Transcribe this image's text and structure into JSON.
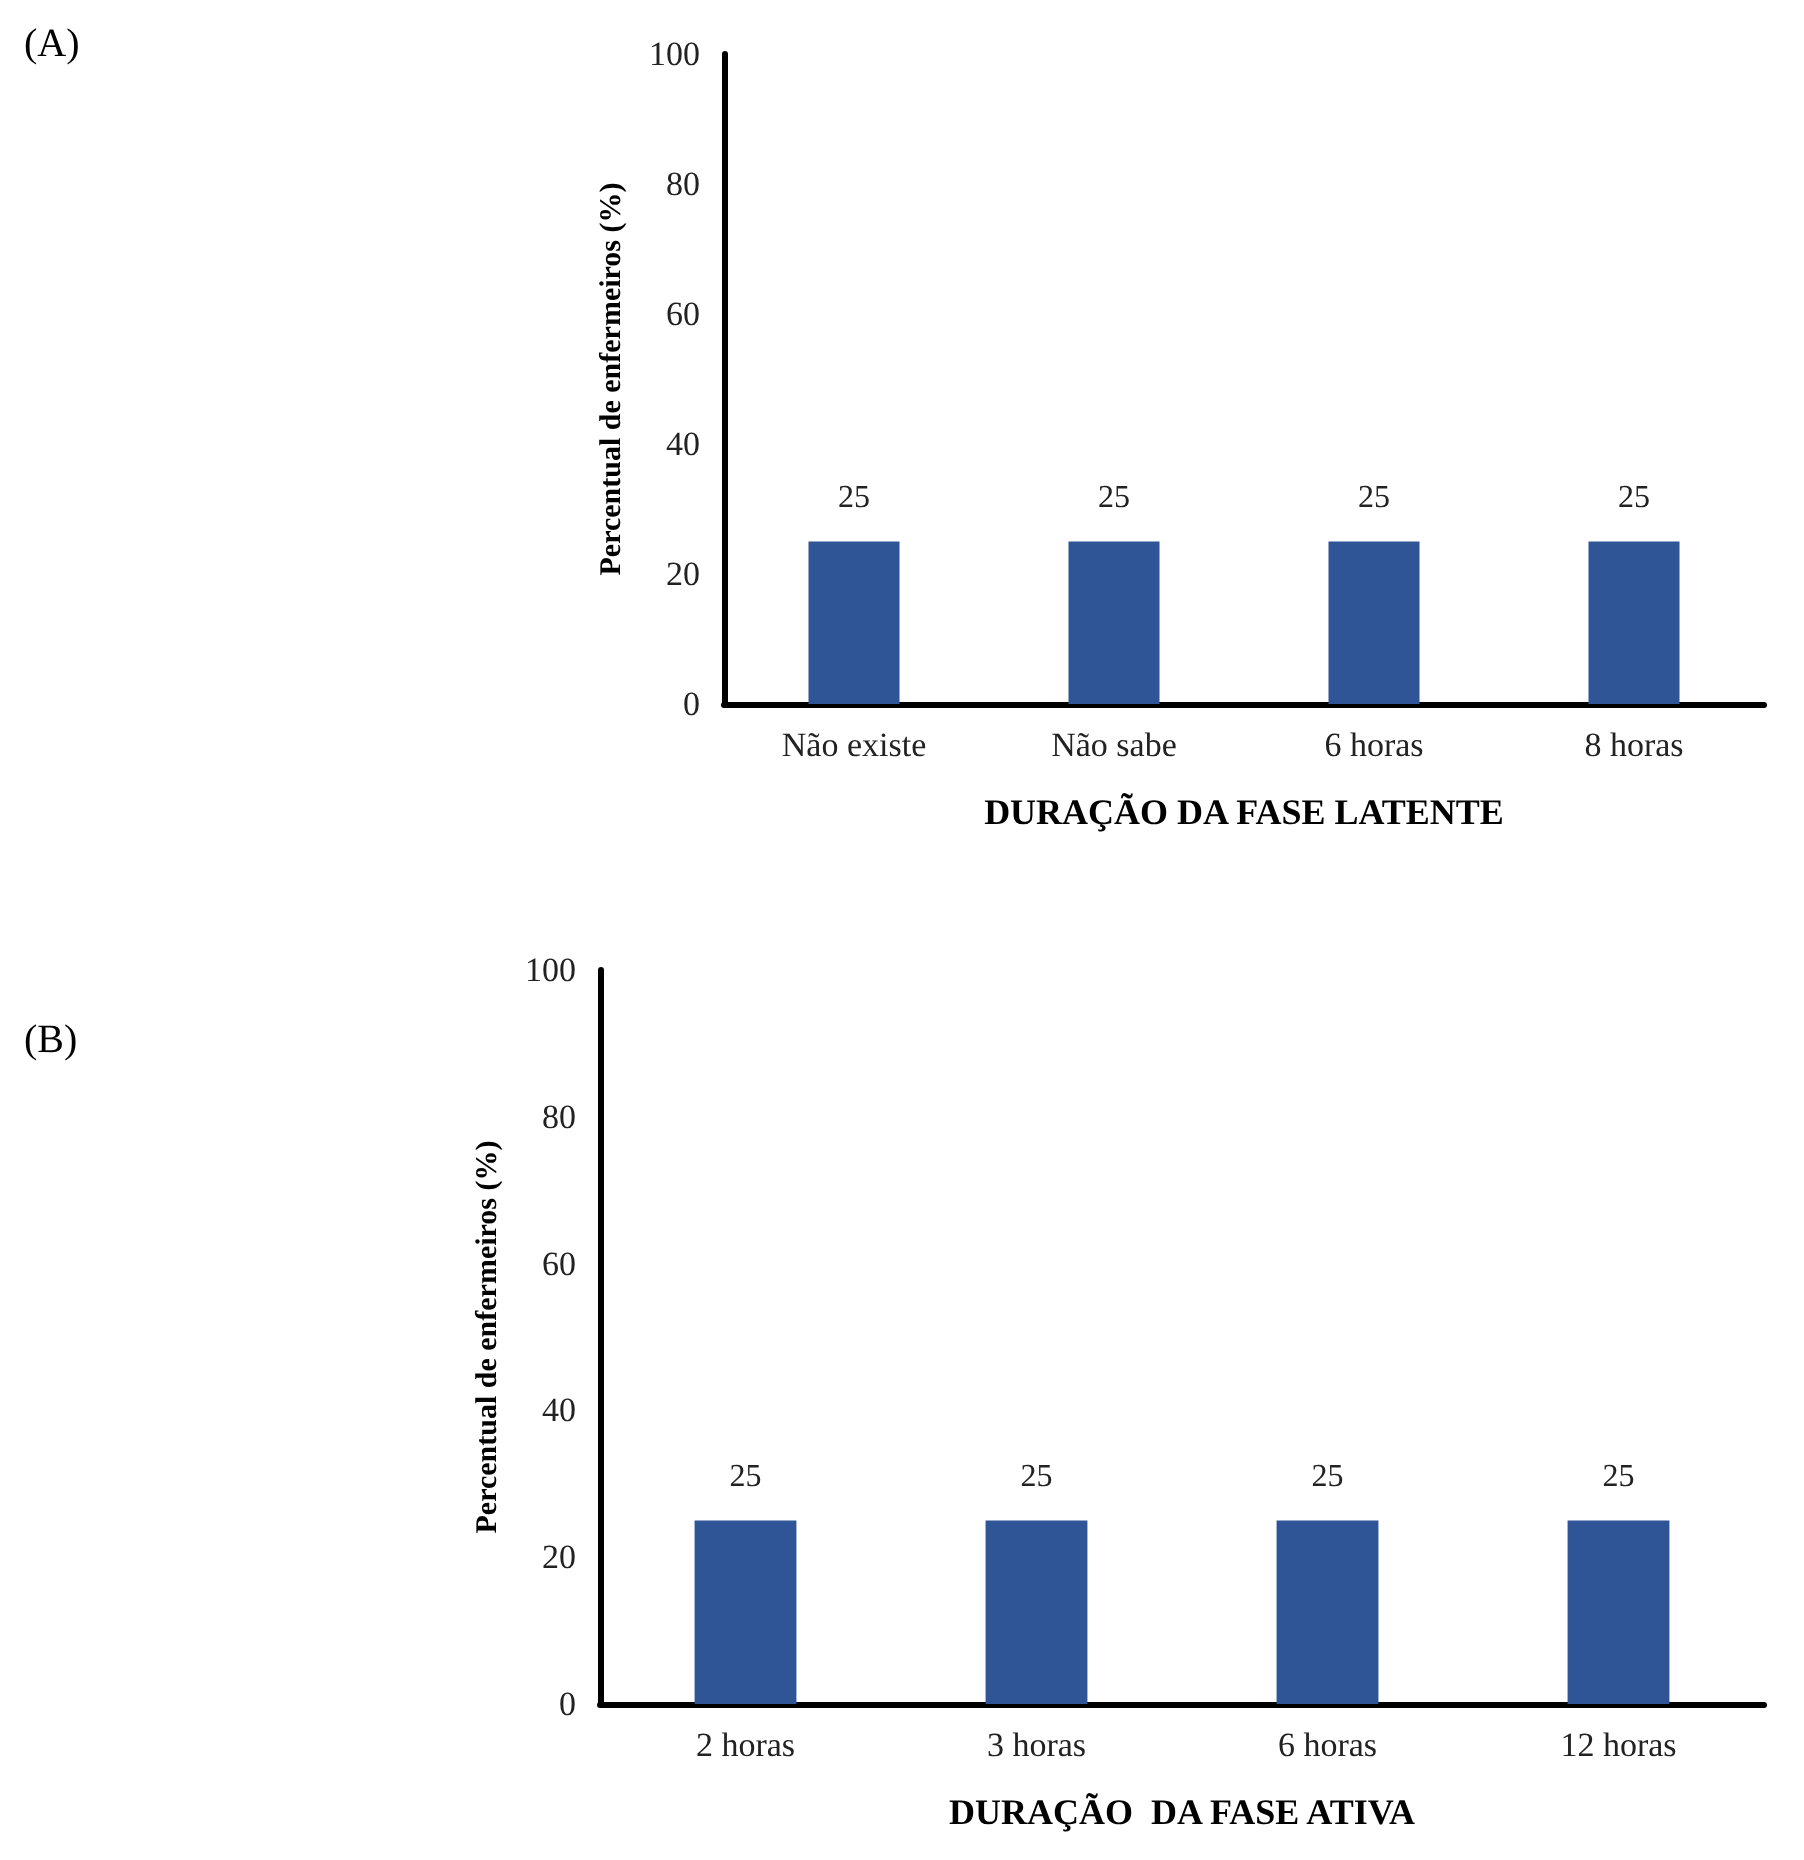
{
  "chart_data": [
    {
      "type": "bar",
      "categories": [
        "Não existe",
        "Não sabe",
        "6 horas",
        "8 horas"
      ],
      "values": [
        25,
        25,
        25,
        25
      ],
      "color": "#2f5597",
      "xlabel": "DURAÇÃO DA FASE LATENTE",
      "ylabel": "Percentual de enfermeiros (%)",
      "ylim": [
        0,
        100
      ],
      "yticks": [
        0,
        20,
        40,
        60,
        80,
        100
      ],
      "grid": false,
      "data_labels": true,
      "annotations": [
        "(A)"
      ]
    },
    {
      "type": "bar",
      "categories": [
        "2 horas",
        "3 horas",
        "6 horas",
        "12 horas"
      ],
      "values": [
        25,
        25,
        25,
        25
      ],
      "color": "#2f5597",
      "xlabel": "DURAÇÃO  DA FASE ATIVA",
      "ylabel": "Percentual de enfermeiros (%)",
      "ylim": [
        0,
        100
      ],
      "yticks": [
        0,
        20,
        40,
        60,
        80,
        100
      ],
      "grid": false,
      "data_labels": true,
      "annotations": [
        "(B)"
      ]
    }
  ]
}
